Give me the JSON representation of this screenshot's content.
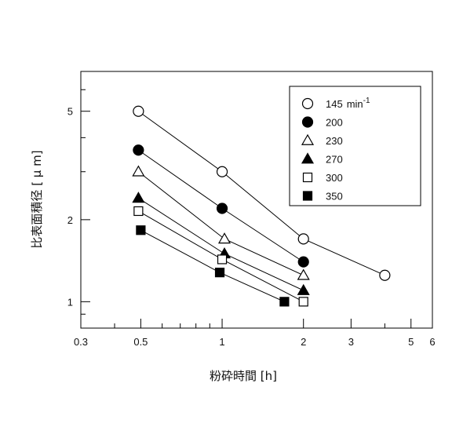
{
  "chart_data": {
    "type": "scatter",
    "xlabel": "粉砕時間 [h]",
    "ylabel": "比表面積径 [ μ m]",
    "x_scale": "log",
    "y_scale": "log",
    "xlim": [
      0.3,
      6
    ],
    "ylim": [
      0.8,
      7
    ],
    "x_ticks": [
      0.3,
      0.5,
      1,
      2,
      3,
      5,
      6
    ],
    "x_tick_labels": [
      "0.3",
      "0.5",
      "1",
      "2",
      "3",
      "5",
      "6"
    ],
    "y_ticks": [
      1,
      2,
      5
    ],
    "y_tick_labels": [
      "1",
      "2",
      "5"
    ],
    "grid": false,
    "legend_position": "top-right",
    "legend_unit": "min",
    "legend_unit_exp": "-1",
    "series": [
      {
        "name": "145",
        "marker": "circle",
        "filled": false,
        "connected": true,
        "x": [
          0.49,
          1.0,
          2.0,
          4.0
        ],
        "y": [
          5.0,
          3.0,
          1.7,
          1.25
        ]
      },
      {
        "name": "200",
        "marker": "circle",
        "filled": true,
        "connected": true,
        "x": [
          0.49,
          1.0,
          2.0
        ],
        "y": [
          3.6,
          2.2,
          1.4
        ]
      },
      {
        "name": "230",
        "marker": "triangle",
        "filled": false,
        "connected": true,
        "x": [
          0.49,
          1.02,
          2.0
        ],
        "y": [
          3.0,
          1.7,
          1.25
        ]
      },
      {
        "name": "270",
        "marker": "triangle",
        "filled": true,
        "connected": true,
        "x": [
          0.49,
          1.02,
          2.0
        ],
        "y": [
          2.4,
          1.5,
          1.1
        ]
      },
      {
        "name": "300",
        "marker": "square",
        "filled": false,
        "connected": true,
        "x": [
          0.49,
          1.0,
          2.0
        ],
        "y": [
          2.15,
          1.43,
          1.0
        ]
      },
      {
        "name": "350",
        "marker": "square",
        "filled": true,
        "connected": true,
        "x": [
          0.5,
          0.98,
          1.7
        ],
        "y": [
          1.83,
          1.28,
          1.0
        ]
      }
    ]
  }
}
